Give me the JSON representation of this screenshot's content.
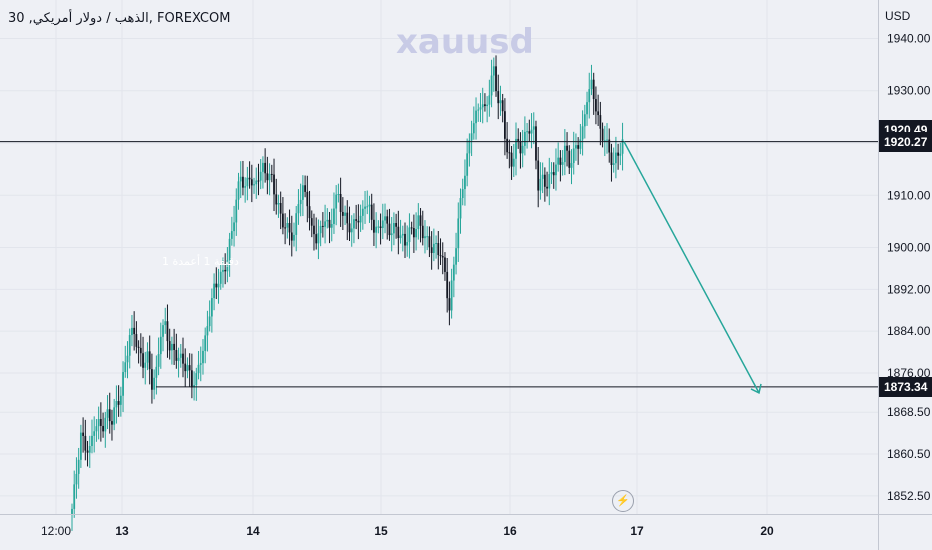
{
  "header": {
    "symbol": "FOREXCOM",
    "interval": "30",
    "name": "الذهب / دولار أمريكي",
    "title": "الذهب / دولار أمريكي, 30, FOREXCOM"
  },
  "watermark": "xauusd",
  "annotation": "دقيقة 1 أعمدة 1",
  "price_axis": {
    "currency": "USD"
  },
  "lightning_icon": "lightning-icon",
  "colors": {
    "up": "#26a69a",
    "down": "#131722",
    "background": "#eef0f5",
    "arrow": "#26a69a"
  },
  "chart_data": {
    "type": "candlestick",
    "y_ticks": [
      1852.5,
      1860.5,
      1868.5,
      1876,
      1884,
      1892,
      1900,
      1910,
      1920,
      1930,
      1940
    ],
    "y_tick_labels": [
      "1852.50",
      "1860.50",
      "1868.50",
      "1876.00",
      "1884.00",
      "1892.00",
      "1900.00",
      "1910.00",
      "1920.00",
      "1930.00",
      "1940.00"
    ],
    "x_tick_labels": [
      "12:00",
      "13",
      "14",
      "15",
      "16",
      "17",
      "20"
    ],
    "price_labels": [
      {
        "value": 1920.49,
        "text": "1920.49"
      },
      {
        "value": 1920.27,
        "text": "1920.27"
      },
      {
        "value": 1873.34,
        "text": "1873.34"
      }
    ],
    "lines": {
      "resistance": 1920.27,
      "support": 1873.34
    },
    "projection_arrow": {
      "from_price": 1920.27,
      "to_price": 1873.34
    },
    "close_path": [
      [
        0,
        1850
      ],
      [
        2,
        1857
      ],
      [
        4,
        1864
      ],
      [
        6,
        1862
      ],
      [
        8,
        1861
      ],
      [
        10,
        1866
      ],
      [
        12,
        1866
      ],
      [
        14,
        1866
      ],
      [
        16,
        1868
      ],
      [
        18,
        1867
      ],
      [
        20,
        1870
      ],
      [
        22,
        1872
      ],
      [
        24,
        1878
      ],
      [
        26,
        1883
      ],
      [
        28,
        1884
      ],
      [
        30,
        1880
      ],
      [
        32,
        1878
      ],
      [
        34,
        1879
      ],
      [
        36,
        1874
      ],
      [
        38,
        1876
      ],
      [
        40,
        1884
      ],
      [
        42,
        1885
      ],
      [
        44,
        1881
      ],
      [
        46,
        1880
      ],
      [
        48,
        1879
      ],
      [
        50,
        1878
      ],
      [
        52,
        1877
      ],
      [
        54,
        1874
      ],
      [
        56,
        1875
      ],
      [
        58,
        1879
      ],
      [
        60,
        1882
      ],
      [
        62,
        1888
      ],
      [
        64,
        1892
      ],
      [
        66,
        1894
      ],
      [
        68,
        1895
      ],
      [
        70,
        1898
      ],
      [
        72,
        1903
      ],
      [
        74,
        1909
      ],
      [
        76,
        1914
      ],
      [
        78,
        1911
      ],
      [
        80,
        1914
      ],
      [
        82,
        1911
      ],
      [
        84,
        1914
      ],
      [
        86,
        1915
      ],
      [
        88,
        1914
      ],
      [
        90,
        1913
      ],
      [
        92,
        1909
      ],
      [
        94,
        1906
      ],
      [
        96,
        1904
      ],
      [
        98,
        1903
      ],
      [
        100,
        1902
      ],
      [
        102,
        1909
      ],
      [
        104,
        1911
      ],
      [
        106,
        1909
      ],
      [
        108,
        1903
      ],
      [
        110,
        1902
      ],
      [
        112,
        1903
      ],
      [
        114,
        1906
      ],
      [
        116,
        1903
      ],
      [
        118,
        1908
      ],
      [
        120,
        1910
      ],
      [
        122,
        1906
      ],
      [
        124,
        1905
      ],
      [
        126,
        1903
      ],
      [
        128,
        1906
      ],
      [
        130,
        1905
      ],
      [
        132,
        1909
      ],
      [
        134,
        1907
      ],
      [
        136,
        1904
      ],
      [
        138,
        1903
      ],
      [
        140,
        1906
      ],
      [
        142,
        1904
      ],
      [
        144,
        1903
      ],
      [
        146,
        1904
      ],
      [
        148,
        1902
      ],
      [
        150,
        1901
      ],
      [
        152,
        1903
      ],
      [
        154,
        1903
      ],
      [
        156,
        1905
      ],
      [
        158,
        1903
      ],
      [
        160,
        1901
      ],
      [
        162,
        1900
      ],
      [
        164,
        1900
      ],
      [
        166,
        1899
      ],
      [
        168,
        1895
      ],
      [
        170,
        1888
      ],
      [
        172,
        1897
      ],
      [
        174,
        1905
      ],
      [
        176,
        1912
      ],
      [
        178,
        1917
      ],
      [
        180,
        1923
      ],
      [
        182,
        1925
      ],
      [
        184,
        1928
      ],
      [
        186,
        1926
      ],
      [
        188,
        1930
      ],
      [
        190,
        1934
      ],
      [
        192,
        1928
      ],
      [
        194,
        1926
      ],
      [
        196,
        1918
      ],
      [
        198,
        1916
      ],
      [
        200,
        1920
      ],
      [
        202,
        1919
      ],
      [
        204,
        1921
      ],
      [
        206,
        1923
      ],
      [
        208,
        1922
      ],
      [
        210,
        1912
      ],
      [
        212,
        1913
      ],
      [
        214,
        1912
      ],
      [
        216,
        1914
      ],
      [
        218,
        1916
      ],
      [
        220,
        1916
      ],
      [
        222,
        1919
      ],
      [
        224,
        1916
      ],
      [
        226,
        1918
      ],
      [
        228,
        1920
      ],
      [
        230,
        1922
      ],
      [
        232,
        1929
      ],
      [
        234,
        1931
      ],
      [
        236,
        1927
      ],
      [
        238,
        1922
      ],
      [
        240,
        1921
      ],
      [
        242,
        1918
      ],
      [
        244,
        1916
      ],
      [
        246,
        1918
      ],
      [
        248,
        1920
      ]
    ]
  }
}
